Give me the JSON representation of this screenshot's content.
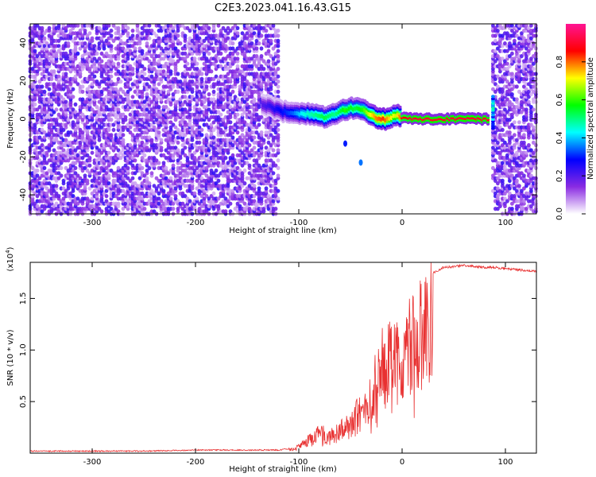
{
  "title": "C2E3.2023.041.16.43.G15",
  "chart_data": [
    {
      "type": "heatmap",
      "xlabel": "Height of straight line (km)",
      "ylabel": "Frequency (Hz)",
      "xlim": [
        -360,
        130
      ],
      "ylim": [
        -50,
        50
      ],
      "x_ticks": [
        -300,
        -200,
        -100,
        0,
        100
      ],
      "x_tick_labels": [
        "-300",
        "-200",
        "-100",
        "0",
        "100"
      ],
      "y_ticks": [
        -40,
        -20,
        0,
        20,
        40
      ],
      "y_tick_labels": [
        "-40",
        "-20",
        "0",
        "20",
        "40"
      ],
      "colorbar": {
        "label": "Normalized spectral amplitude",
        "range": [
          0,
          1
        ],
        "ticks": [
          0.0,
          0.2,
          0.4,
          0.6,
          0.8
        ],
        "tick_labels": [
          "0.0",
          "0.2",
          "0.4",
          "0.6",
          "0.8"
        ],
        "colors": [
          "#ffffff",
          "#8a2be2",
          "#0000ff",
          "#00ffff",
          "#00ff00",
          "#ffff00",
          "#ff0000",
          "#ff1493"
        ]
      },
      "noise_regions": [
        {
          "x_range": [
            -360,
            -118
          ],
          "level": 0.12
        },
        {
          "x_range": [
            88,
            130
          ],
          "level": 0.12
        }
      ],
      "signal_ridge": {
        "x": [
          -135,
          -125,
          -115,
          -105,
          -95,
          -85,
          -75,
          -65,
          -55,
          -45,
          -38,
          -32,
          -25,
          -18,
          -12,
          -6,
          0,
          10,
          30,
          50,
          70,
          85
        ],
        "frequency": [
          8,
          6,
          4,
          3,
          3,
          2,
          1,
          3,
          5,
          6,
          5,
          3,
          1,
          0,
          0,
          2,
          1,
          0,
          0,
          0,
          0,
          0
        ],
        "amplitude": [
          0.2,
          0.25,
          0.3,
          0.35,
          0.45,
          0.5,
          0.55,
          0.5,
          0.6,
          0.55,
          0.6,
          0.7,
          0.8,
          0.85,
          0.75,
          0.7,
          0.85,
          0.9,
          0.9,
          0.9,
          0.9,
          0.9
        ]
      },
      "spurious_points": [
        {
          "x": -55,
          "frequency": -13,
          "amplitude": 0.3
        },
        {
          "x": -40,
          "frequency": -23,
          "amplitude": 0.35
        }
      ],
      "edge_feature": {
        "x": 88,
        "frequency_range": [
          -5,
          12
        ],
        "amplitude": 0.4
      }
    },
    {
      "type": "line",
      "xlabel": "Height of straight line (km)",
      "ylabel": "SNR (10 * v/v)",
      "y_scale_label": "(x10",
      "y_scale_exponent": "4",
      "y_scale_close": ")",
      "xlim": [
        -360,
        130
      ],
      "ylim": [
        0,
        1.85
      ],
      "x_ticks": [
        -300,
        -200,
        -100,
        0,
        100
      ],
      "x_tick_labels": [
        "-300",
        "-200",
        "-100",
        "0",
        "100"
      ],
      "y_ticks": [
        0.5,
        1.0,
        1.5
      ],
      "y_tick_labels": [
        "0.5",
        "1.0",
        "1.5"
      ],
      "series": [
        {
          "color": "#e83030",
          "x": [
            -360,
            -300,
            -250,
            -200,
            -150,
            -120,
            -105,
            -100,
            -95,
            -90,
            -85,
            -80,
            -75,
            -70,
            -65,
            -60,
            -55,
            -50,
            -45,
            -40,
            -35,
            -30,
            -25,
            -20,
            -15,
            -10,
            -5,
            0,
            5,
            10,
            15,
            20,
            25,
            30,
            40,
            50,
            60,
            70,
            80,
            90,
            100,
            110,
            120,
            130
          ],
          "values": [
            0.02,
            0.02,
            0.02,
            0.03,
            0.03,
            0.03,
            0.05,
            0.08,
            0.12,
            0.16,
            0.2,
            0.24,
            0.25,
            0.22,
            0.25,
            0.28,
            0.3,
            0.35,
            0.42,
            0.5,
            0.55,
            0.7,
            0.85,
            1.0,
            1.1,
            1.2,
            1.1,
            1.2,
            1.25,
            1.3,
            1.42,
            1.6,
            1.7,
            1.75,
            1.8,
            1.81,
            1.82,
            1.81,
            1.8,
            1.8,
            1.79,
            1.78,
            1.77,
            1.76
          ]
        }
      ]
    }
  ]
}
